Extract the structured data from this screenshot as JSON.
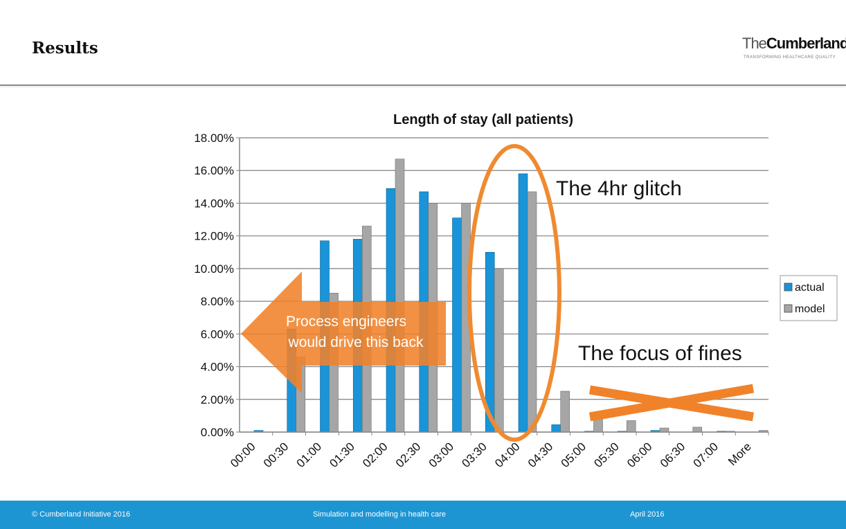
{
  "slide": {
    "title": "Results",
    "logo": {
      "brand_light": "The",
      "brand_bold": "Cumberland",
      "tagline": "TRANSFORMING HEALTHCARE QUALITY"
    },
    "footer": {
      "left": "© Cumberland Initiative 2016",
      "center": "Simulation and modelling in health care",
      "right": "April 2016"
    }
  },
  "chart_data": {
    "type": "bar",
    "title": "Length of stay (all patients)",
    "xlabel": "",
    "ylabel": "",
    "ylim": [
      0,
      18
    ],
    "y_ticks": [
      0,
      2,
      4,
      6,
      8,
      10,
      12,
      14,
      16,
      18
    ],
    "y_tick_labels": [
      "0.00%",
      "2.00%",
      "4.00%",
      "6.00%",
      "8.00%",
      "10.00%",
      "12.00%",
      "14.00%",
      "16.00%",
      "18.00%"
    ],
    "categories": [
      "00:00",
      "00:30",
      "01:00",
      "01:30",
      "02:00",
      "02:30",
      "03:00",
      "03:30",
      "04:00",
      "04:30",
      "05:00",
      "05:30",
      "06:00",
      "06:30",
      "07:00",
      "More"
    ],
    "series": [
      {
        "name": "actual",
        "color": "#1a94d8",
        "values": [
          0.1,
          6.3,
          11.7,
          11.8,
          14.9,
          14.7,
          13.1,
          11.0,
          15.8,
          0.45,
          0.05,
          0.05,
          0.1,
          0.0,
          0.05,
          0.0
        ]
      },
      {
        "name": "model",
        "color": "#a6a6a6",
        "values": [
          0.0,
          4.6,
          8.5,
          12.6,
          16.7,
          14.0,
          14.0,
          10.0,
          14.7,
          2.5,
          1.1,
          0.7,
          0.25,
          0.3,
          0.05,
          0.1
        ]
      }
    ],
    "legend": [
      "actual",
      "model"
    ],
    "legend_position": "right",
    "grid": true,
    "annotations": {
      "arrow_text": [
        "Process engineers",
        "would drive this back"
      ],
      "glitch": "The 4hr glitch",
      "fines": "The focus of fines"
    },
    "annotation_colors": {
      "arrow": "#f0822a",
      "ellipse": "#f08a30",
      "cross": "#f0822a"
    }
  }
}
